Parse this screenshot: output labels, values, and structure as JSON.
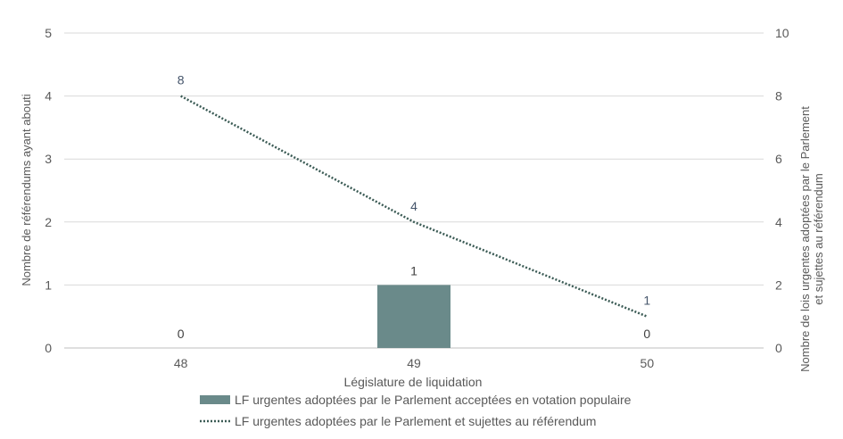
{
  "chart_data": {
    "type": "bar",
    "title": "",
    "xlabel": "Législature de liquidation",
    "ylabel": "Nombre de référendums ayant abouti",
    "y2label_line1": "Nombre de lois urgentes adoptées par le Parlement",
    "y2label_line2": "et sujettes au référendum",
    "categories": [
      "48",
      "49",
      "50"
    ],
    "ylim": [
      0,
      5
    ],
    "y_ticks": [
      0,
      1,
      2,
      3,
      4,
      5
    ],
    "y2lim": [
      0,
      10
    ],
    "y2_ticks": [
      0,
      2,
      4,
      6,
      8,
      10
    ],
    "grid": true,
    "legend_position": "bottom",
    "series": [
      {
        "name": "LF urgentes adoptées par le Parlement acceptées en votation populaire",
        "type": "bar",
        "axis": "left",
        "values": [
          0,
          1,
          0
        ],
        "value_labels": [
          "0",
          "1",
          "0"
        ],
        "color": "#6a8a8a"
      },
      {
        "name": "LF urgentes adoptées par le Parlement et sujettes au référendum",
        "type": "line",
        "axis": "right",
        "style": "dotted",
        "values": [
          8,
          4,
          1
        ],
        "value_labels": [
          "8",
          "4",
          "1"
        ],
        "color": "#3b5b55"
      }
    ]
  }
}
